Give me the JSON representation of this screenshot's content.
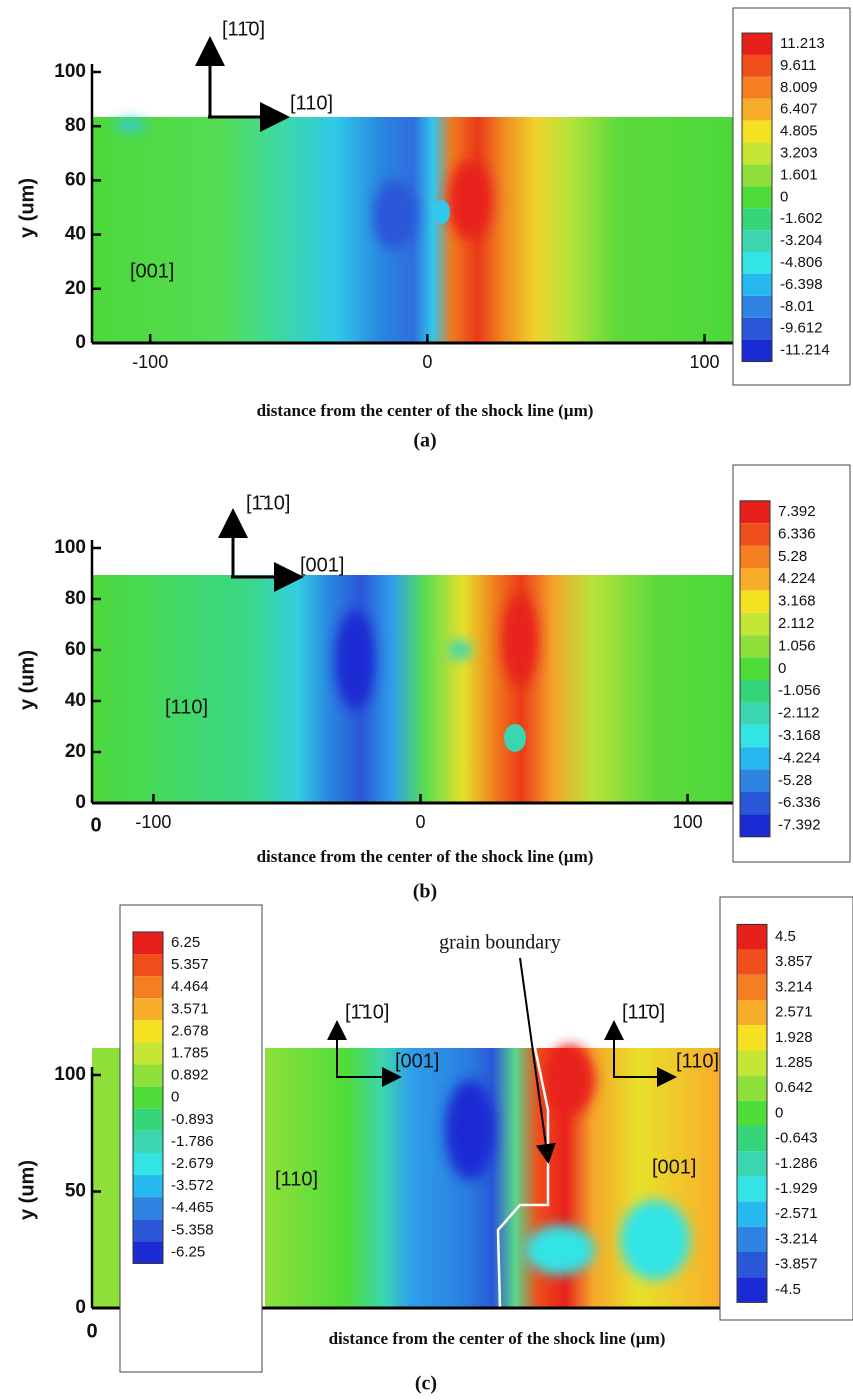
{
  "chart_data": [
    {
      "type": "contour",
      "caption": "(a)",
      "xlabel": "distance from the center of the shock line (µm)",
      "ylabel": "y (um)",
      "xlim": [
        -121,
        111
      ],
      "xticks": [
        -100,
        0,
        100
      ],
      "ylim": [
        0,
        100
      ],
      "yticks": [
        0,
        20,
        40,
        60,
        80,
        100
      ],
      "annotations": [
        "[11̄0]",
        "[110]",
        "[001]"
      ],
      "colorbars": [
        {
          "levels": [
            11.213,
            9.611,
            8.009,
            6.407,
            4.805,
            3.203,
            1.601,
            0,
            -1.602,
            -3.204,
            -4.806,
            -6.398,
            -8.01,
            -9.612,
            -11.214
          ],
          "colors": [
            "#e8201c",
            "#f04e1c",
            "#f57f20",
            "#f8ad2a",
            "#f4e222",
            "#c6e636",
            "#8fe03a",
            "#4fdc3a",
            "#35d57a",
            "#3bd6b0",
            "#32e4e4",
            "#27b8ef",
            "#2f84e3",
            "#2a57d8",
            "#1a2bd3"
          ]
        }
      ]
    },
    {
      "type": "contour",
      "caption": "(b)",
      "xlabel": "distance from the center of the shock line (µm)",
      "ylabel": "y (um)",
      "xlim": [
        -123,
        117
      ],
      "xticks": [
        -100,
        0,
        100
      ],
      "ylim": [
        0,
        100
      ],
      "yticks": [
        0,
        20,
        40,
        60,
        80,
        100
      ],
      "annotations": [
        "[1̄10]",
        "[001]",
        "[110]",
        "0"
      ],
      "colorbars": [
        {
          "levels": [
            7.392,
            6.336,
            5.28,
            4.224,
            3.168,
            2.112,
            1.056,
            0,
            -1.056,
            -2.112,
            -3.168,
            -4.224,
            -5.28,
            -6.336,
            -7.392
          ],
          "colors": [
            "#e8201c",
            "#f04e1c",
            "#f57f20",
            "#f8ad2a",
            "#f4e222",
            "#c6e636",
            "#8fe03a",
            "#4fdc3a",
            "#35d57a",
            "#3bd6b0",
            "#32e4e4",
            "#27b8ef",
            "#2f84e3",
            "#2a57d8",
            "#1a2bd3"
          ]
        }
      ]
    },
    {
      "type": "contour",
      "caption": "(c)",
      "xlabel": "distance from the center of the shock line (µm)",
      "ylabel": "y (um)",
      "ylim": [
        0,
        100
      ],
      "yticks": [
        0,
        50,
        100
      ],
      "annotations": [
        "[1̄10]",
        "[001]",
        "[11̄0]",
        "[110]",
        "[110]",
        "[001]",
        "grain boundary",
        "0"
      ],
      "colorbars": [
        {
          "levels": [
            6.25,
            5.357,
            4.464,
            3.571,
            2.678,
            1.785,
            0.892,
            0,
            -0.893,
            -1.786,
            -2.679,
            -3.572,
            -4.465,
            -5.358,
            -6.25
          ],
          "colors": [
            "#e8201c",
            "#f04e1c",
            "#f57f20",
            "#f8ad2a",
            "#f4e222",
            "#c6e636",
            "#8fe03a",
            "#4fdc3a",
            "#35d57a",
            "#3bd6b0",
            "#32e4e4",
            "#27b8ef",
            "#2f84e3",
            "#2a57d8",
            "#1a2bd3"
          ]
        },
        {
          "levels": [
            4.5,
            3.857,
            3.214,
            2.571,
            1.928,
            1.285,
            0.642,
            0,
            -0.643,
            -1.286,
            -1.929,
            -2.571,
            -3.214,
            -3.857,
            -4.5
          ],
          "colors": [
            "#e8201c",
            "#f04e1c",
            "#f57f20",
            "#f8ad2a",
            "#f4e222",
            "#c6e636",
            "#8fe03a",
            "#4fdc3a",
            "#35d57a",
            "#3bd6b0",
            "#32e4e4",
            "#27b8ef",
            "#2f84e3",
            "#2a57d8",
            "#1a2bd3"
          ]
        }
      ]
    }
  ]
}
